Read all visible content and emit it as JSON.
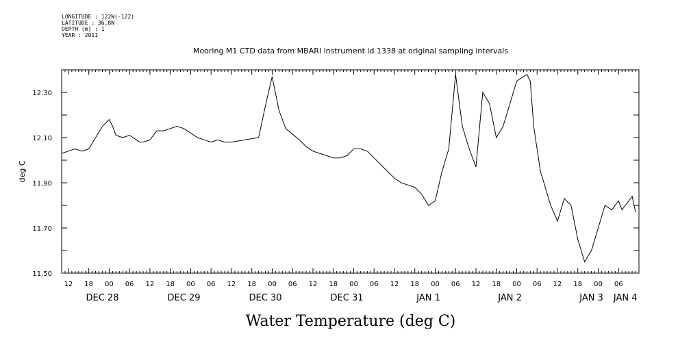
{
  "header": {
    "meta_lines": [
      "LONGITUDE : 122W(-122)",
      "LATITUDE : 36.8N",
      "DEPTH (m) : 1",
      "YEAR : 2011"
    ],
    "title": "Mooring M1 CTD data from MBARI instrument id 1338 at original sampling intervals"
  },
  "chart_data": {
    "type": "line",
    "title": "Mooring M1 CTD data from MBARI instrument id 1338 at original sampling intervals",
    "xlabel": "Water Temperature (deg C)",
    "ylabel": "deg C",
    "ylim": [
      11.5,
      12.4
    ],
    "xlim_hours": [
      0,
      170
    ],
    "y_ticks": [
      "11.50",
      "11.70",
      "11.90",
      "12.10",
      "12.30"
    ],
    "hour_tick_labels": [
      "12",
      "18",
      "00",
      "06",
      "12",
      "18",
      "00",
      "06",
      "12",
      "18",
      "00",
      "06",
      "12",
      "18",
      "00",
      "06",
      "12",
      "18",
      "00",
      "06",
      "12",
      "18",
      "00",
      "06",
      "12",
      "18",
      "00",
      "06"
    ],
    "day_labels": [
      "DEC 28",
      "DEC 29",
      "DEC 30",
      "DEC 31",
      "JAN  1",
      "JAN  2",
      "JAN  3",
      "JAN  4"
    ],
    "x_hours": [
      0,
      2,
      4,
      6,
      8,
      10,
      12,
      14,
      15,
      16,
      18,
      20,
      22,
      23,
      24,
      26,
      28,
      30,
      32,
      34,
      36,
      38,
      40,
      42,
      44,
      46,
      48,
      50,
      54,
      58,
      60,
      62,
      64,
      66,
      70,
      72,
      74,
      76,
      78,
      80,
      82,
      84,
      86,
      88,
      90,
      92,
      94,
      96,
      98,
      100,
      102,
      104,
      106,
      108,
      110,
      112,
      114,
      116,
      118,
      120,
      122,
      124,
      126,
      128,
      130,
      131,
      132,
      133,
      134,
      135,
      136,
      137,
      138,
      139,
      140,
      141,
      142,
      143,
      144,
      146,
      148,
      150,
      152,
      154,
      156,
      158,
      160,
      162,
      164,
      165,
      166,
      168,
      169
    ],
    "series": [
      {
        "values": [
          12.03,
          12.04,
          12.05,
          12.04,
          12.05,
          12.1,
          12.15,
          12.18,
          12.15,
          12.11,
          12.1,
          12.11,
          12.09,
          12.08,
          12.08,
          12.09,
          12.13,
          12.13,
          12.14,
          12.15,
          12.14,
          12.12,
          12.1,
          12.09,
          12.08,
          12.09,
          12.08,
          12.08,
          12.09,
          12.1,
          12.24,
          12.37,
          12.22,
          12.14,
          12.09,
          12.06,
          12.04,
          12.03,
          12.02,
          12.01,
          12.01,
          12.02,
          12.05,
          12.05,
          12.04,
          12.01,
          11.98,
          11.95,
          11.92,
          11.9,
          11.89,
          11.88,
          11.85,
          11.8,
          11.82,
          11.95,
          12.05,
          12.38,
          12.15,
          12.05,
          11.97,
          12.3,
          12.25,
          12.1,
          12.15,
          12.2,
          12.25,
          12.3,
          12.35,
          12.36,
          12.37,
          12.38,
          12.35,
          12.15,
          12.05,
          11.95,
          11.9,
          11.85,
          11.8,
          11.73,
          11.83,
          11.8,
          11.65,
          11.55,
          11.6,
          11.7,
          11.8,
          11.78,
          11.82,
          11.78,
          11.8,
          11.84,
          11.77
        ]
      }
    ]
  }
}
